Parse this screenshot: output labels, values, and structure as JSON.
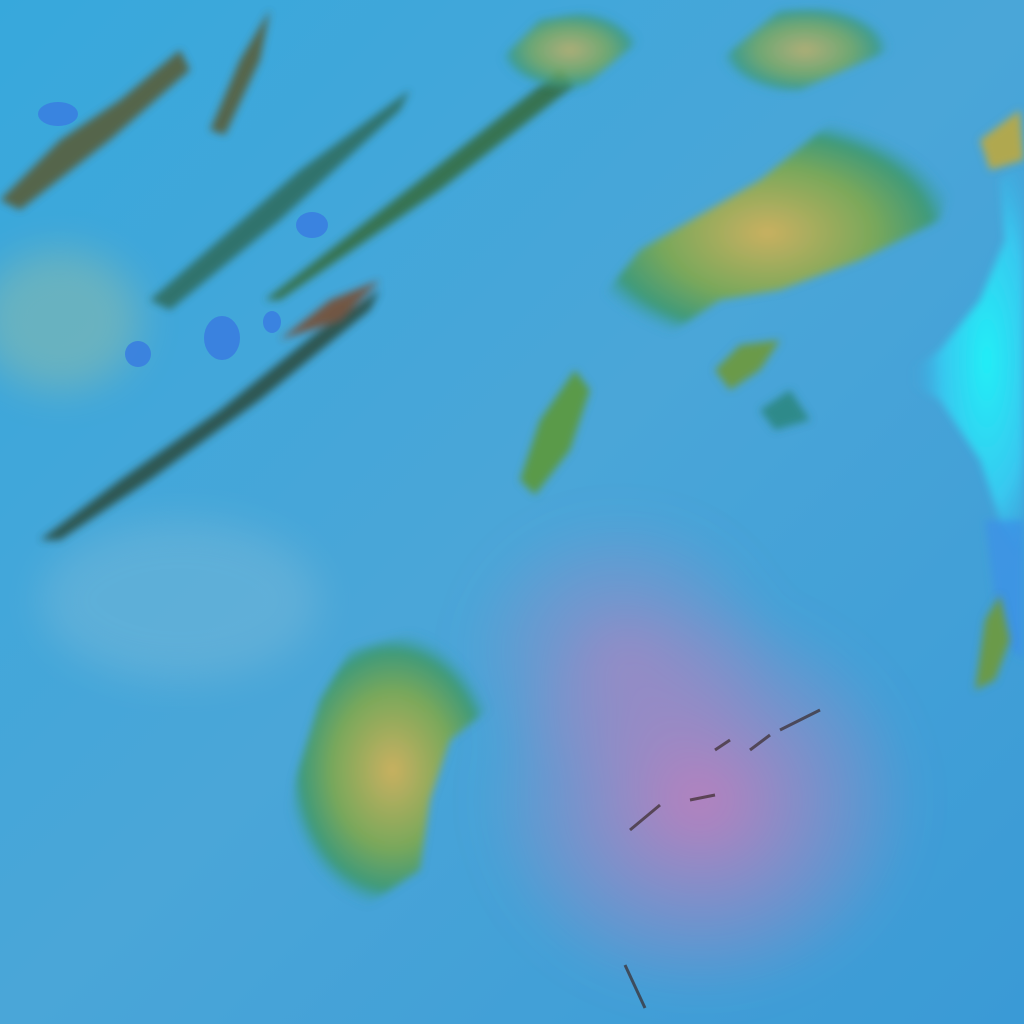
{
  "image": {
    "kind": "false-color satellite imagery",
    "colors": {
      "background": "#3aa6d8",
      "pink_haze": "#c97ab8",
      "cloud_green": "#6fa45a",
      "cloud_yellow": "#c9b060",
      "cloud_dark": "#2a4a3a",
      "ice_cyan": "#22e6f2",
      "lake_blue": "#3a7fe0"
    }
  }
}
